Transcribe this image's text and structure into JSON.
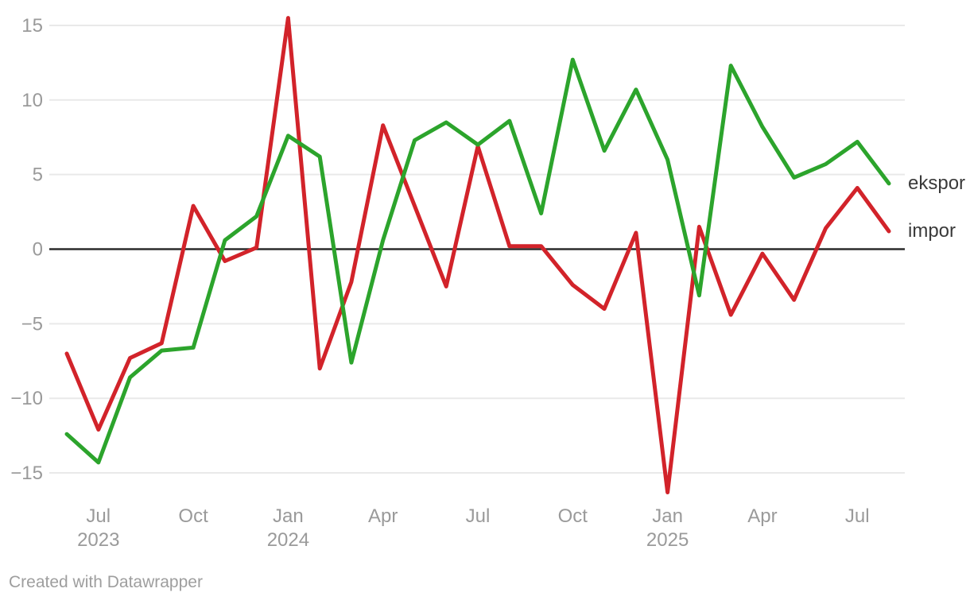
{
  "chart_data": {
    "type": "line",
    "title": "",
    "xlabel": "",
    "ylabel": "",
    "grid": true,
    "legend_position": "right-end-of-lines",
    "ylim": [
      -16.5,
      15.6
    ],
    "x": [
      "Jun 2023",
      "Jul 2023",
      "Aug 2023",
      "Sep 2023",
      "Oct 2023",
      "Nov 2023",
      "Dec 2023",
      "Jan 2024",
      "Feb 2024",
      "Mar 2024",
      "Apr 2024",
      "May 2024",
      "Jun 2024",
      "Jul 2024",
      "Aug 2024",
      "Sep 2024",
      "Oct 2024",
      "Nov 2024",
      "Dec 2024",
      "Jan 2025",
      "Feb 2025",
      "Mar 2025",
      "Apr 2025",
      "May 2025",
      "Jun 2025",
      "Jul 2025",
      "Aug 2025"
    ],
    "series": [
      {
        "name": "ekspor",
        "color": "#2ca42c",
        "values": [
          -12.4,
          -14.3,
          -8.6,
          -6.8,
          -6.6,
          0.6,
          2.2,
          7.6,
          6.2,
          -7.6,
          0.6,
          7.3,
          8.5,
          7.0,
          8.6,
          2.4,
          12.7,
          6.6,
          10.7,
          6.0,
          -3.1,
          12.3,
          8.2,
          4.8,
          5.7,
          7.2,
          4.4
        ]
      },
      {
        "name": "impor",
        "color": "#d2232a",
        "values": [
          -7.0,
          -12.1,
          -7.3,
          -6.3,
          2.9,
          -0.8,
          0.1,
          15.5,
          -8.0,
          -2.2,
          8.3,
          2.9,
          -2.5,
          6.9,
          0.2,
          0.2,
          -2.4,
          -4.0,
          1.1,
          -16.3,
          1.5,
          -4.4,
          -0.3,
          -3.4,
          1.4,
          4.1,
          1.2
        ]
      }
    ],
    "yticks": [
      {
        "value": 15,
        "label": "15"
      },
      {
        "value": 10,
        "label": "10"
      },
      {
        "value": 5,
        "label": "5"
      },
      {
        "value": 0,
        "label": "0"
      },
      {
        "value": -5,
        "label": "−5"
      },
      {
        "value": -10,
        "label": "−10"
      },
      {
        "value": -15,
        "label": "−15"
      }
    ],
    "xticks": [
      {
        "index": 1,
        "label": "Jul",
        "year": "2023"
      },
      {
        "index": 4,
        "label": "Oct",
        "year": ""
      },
      {
        "index": 7,
        "label": "Jan",
        "year": "2024"
      },
      {
        "index": 10,
        "label": "Apr",
        "year": ""
      },
      {
        "index": 13,
        "label": "Jul",
        "year": ""
      },
      {
        "index": 16,
        "label": "Oct",
        "year": ""
      },
      {
        "index": 19,
        "label": "Jan",
        "year": "2025"
      },
      {
        "index": 22,
        "label": "Apr",
        "year": ""
      },
      {
        "index": 25,
        "label": "Jul",
        "year": ""
      }
    ]
  },
  "colors": {
    "background": "#ffffff",
    "grid": "#e9e9e9",
    "zero_line": "#2b2b2b",
    "axis_text": "#9a9a9a",
    "legend_text": "#3a3a3a",
    "credit_text": "#9e9e9e"
  },
  "footer": {
    "credit": "Created with Datawrapper"
  }
}
